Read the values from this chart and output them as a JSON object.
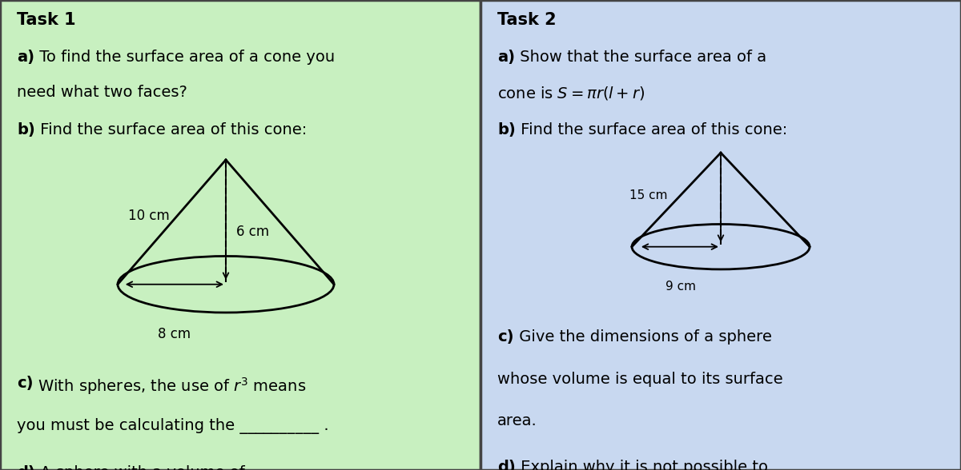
{
  "bg_left": "#c8f0c0",
  "bg_right": "#c8d8f0",
  "border_color": "#444444",
  "fig_width": 12.0,
  "fig_height": 5.88,
  "task1_title": "Task 1",
  "task2_title": "Task 2",
  "cone1_slant": "10 cm",
  "cone1_height": "6 cm",
  "cone1_radius": "8 cm",
  "cone2_slant": "15 cm",
  "cone2_radius": "9 cm",
  "fontsize_title": 15,
  "fontsize_body": 14
}
